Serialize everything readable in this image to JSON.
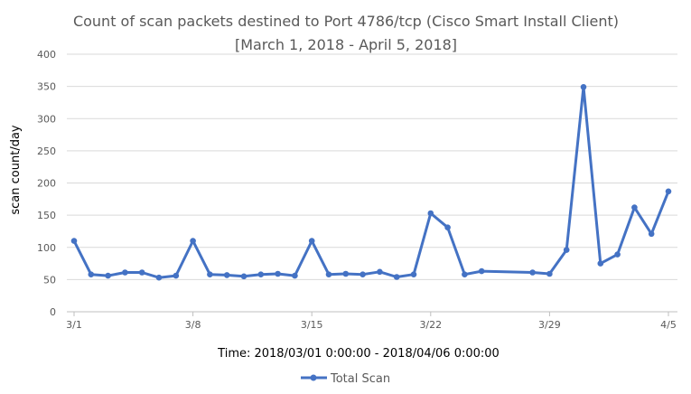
{
  "chart_data": {
    "type": "line",
    "title": "Count of scan packets destined to Port 4786/tcp (Cisco Smart Install Client)",
    "subtitle": "[March 1, 2018 - April 5, 2018]",
    "xlabel": "Time: 2018/03/01 0:00:00 - 2018/04/06 0:00:00",
    "ylabel": "scan count/day",
    "ylim": [
      0,
      400
    ],
    "yticks": [
      "0",
      "50",
      "100",
      "150",
      "200",
      "250",
      "300",
      "350",
      "400"
    ],
    "xtick_labels": [
      "3/1",
      "3/8",
      "3/15",
      "3/22",
      "3/29",
      "4/5"
    ],
    "xtick_dates": [
      "2018-03-01",
      "2018-03-08",
      "2018-03-15",
      "2018-03-22",
      "2018-03-29",
      "2018-04-05"
    ],
    "grid": true,
    "legend_position": "bottom",
    "series": [
      {
        "name": "Total Scan",
        "color": "#4472c4",
        "x": [
          "2018-03-01",
          "2018-03-02",
          "2018-03-03",
          "2018-03-04",
          "2018-03-05",
          "2018-03-06",
          "2018-03-07",
          "2018-03-08",
          "2018-03-09",
          "2018-03-10",
          "2018-03-11",
          "2018-03-12",
          "2018-03-13",
          "2018-03-14",
          "2018-03-15",
          "2018-03-16",
          "2018-03-17",
          "2018-03-18",
          "2018-03-19",
          "2018-03-20",
          "2018-03-21",
          "2018-03-22",
          "2018-03-23",
          "2018-03-24",
          "2018-03-25",
          "2018-03-28",
          "2018-03-29",
          "2018-03-30",
          "2018-03-31",
          "2018-04-01",
          "2018-04-02",
          "2018-04-03",
          "2018-04-04",
          "2018-04-05"
        ],
        "values": [
          110,
          58,
          56,
          61,
          61,
          53,
          56,
          110,
          58,
          57,
          55,
          58,
          59,
          56,
          110,
          58,
          59,
          58,
          62,
          54,
          58,
          153,
          131,
          58,
          63,
          61,
          59,
          96,
          349,
          75,
          89,
          162,
          121,
          187
        ]
      }
    ]
  }
}
